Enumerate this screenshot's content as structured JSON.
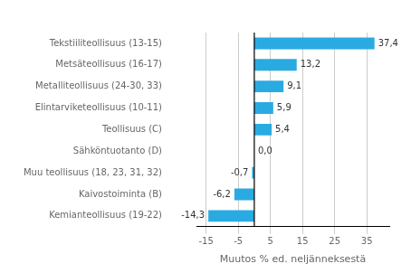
{
  "chart_data": {
    "type": "bar",
    "orientation": "horizontal",
    "categories": [
      "Kemianteollisuus (19-22)",
      "Kaivostoiminta (B)",
      "Muu teollisuus (18, 23, 31, 32)",
      "Sähköntuotanto (D)",
      "Teollisuus (C)",
      "Elintarviketeollisuus (10-11)",
      "Metalliteollisuus (24-30, 33)",
      "Metsäteollisuus (16-17)",
      "Tekstiiliteollisuus (13-15)"
    ],
    "values": [
      -14.3,
      -6.2,
      -0.7,
      0.0,
      5.4,
      5.9,
      9.1,
      13.2,
      37.4
    ],
    "value_labels": [
      "-14,3",
      "-6,2",
      "-0,7",
      "0,0",
      "5,4",
      "5,9",
      "9,1",
      "13,2",
      "37,4"
    ],
    "color": "#29abe2",
    "xlabel": "Muutos % ed. neljänneksestä",
    "xlim": [
      -18,
      42
    ],
    "xticks": [
      -15,
      -5,
      5,
      15,
      25,
      35
    ],
    "grid": true,
    "data_labels": true
  }
}
